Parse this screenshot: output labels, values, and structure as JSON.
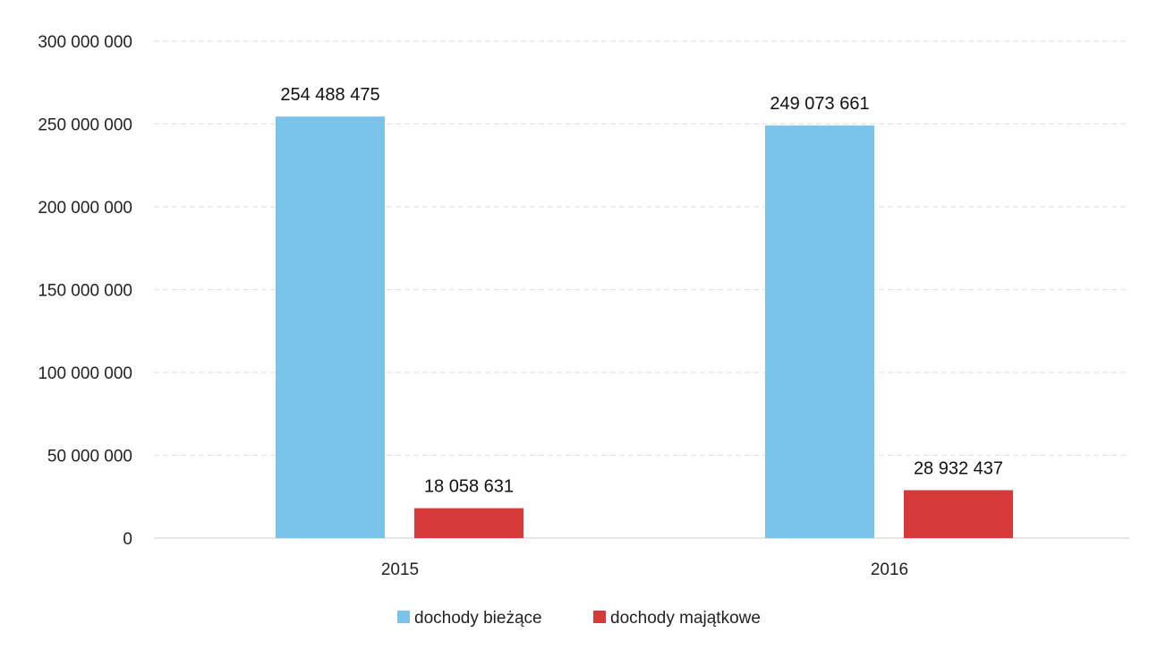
{
  "chart_data": {
    "type": "bar",
    "categories": [
      "2015",
      "2016"
    ],
    "series": [
      {
        "name": "dochody bieżące",
        "values": [
          254488475,
          249073661
        ],
        "labels": [
          "254 488 475",
          "249 073 661"
        ],
        "color": "#79C3EB"
      },
      {
        "name": "dochody majątkowe",
        "values": [
          18058631,
          28932437
        ],
        "labels": [
          "18 058 631",
          "28 932 437"
        ],
        "color": "#D5393A"
      }
    ],
    "ylim": [
      0,
      300000000
    ],
    "yticks": [
      0,
      50000000,
      100000000,
      150000000,
      200000000,
      250000000,
      300000000
    ],
    "ytick_labels": [
      "0",
      "50 000 000",
      "100 000 000",
      "150 000 000",
      "200 000 000",
      "250 000 000",
      "300 000 000"
    ],
    "grid": true,
    "legend": "bottom"
  }
}
